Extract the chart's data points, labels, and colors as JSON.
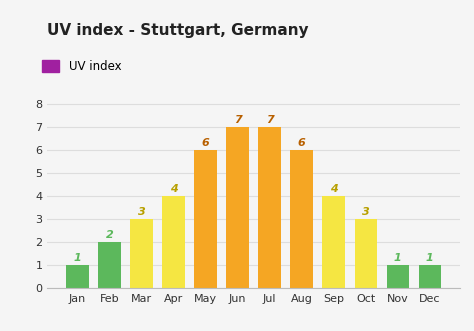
{
  "title": "UV index - Stuttgart, Germany",
  "legend_label": "UV index",
  "months": [
    "Jan",
    "Feb",
    "Mar",
    "Apr",
    "May",
    "Jun",
    "Jul",
    "Aug",
    "Sep",
    "Oct",
    "Nov",
    "Dec"
  ],
  "values": [
    1,
    2,
    3,
    4,
    6,
    7,
    7,
    6,
    4,
    3,
    1,
    1
  ],
  "bar_colors": [
    "#5cb85c",
    "#5cb85c",
    "#f5e642",
    "#f5e642",
    "#f5a623",
    "#f5a623",
    "#f5a623",
    "#f5a623",
    "#f5e642",
    "#f5e642",
    "#5cb85c",
    "#5cb85c"
  ],
  "value_colors": [
    "#5cb85c",
    "#5cb85c",
    "#b8a000",
    "#b8a000",
    "#b86000",
    "#b86000",
    "#b86000",
    "#b86000",
    "#b8a000",
    "#b8a000",
    "#5cb85c",
    "#5cb85c"
  ],
  "legend_color": "#a020a0",
  "ylim": [
    0,
    8.5
  ],
  "yticks": [
    0,
    1,
    2,
    3,
    4,
    5,
    6,
    7,
    8
  ],
  "background_color": "#f5f5f5",
  "grid_color": "#dddddd",
  "title_fontsize": 11,
  "label_fontsize": 8,
  "value_fontsize": 8
}
